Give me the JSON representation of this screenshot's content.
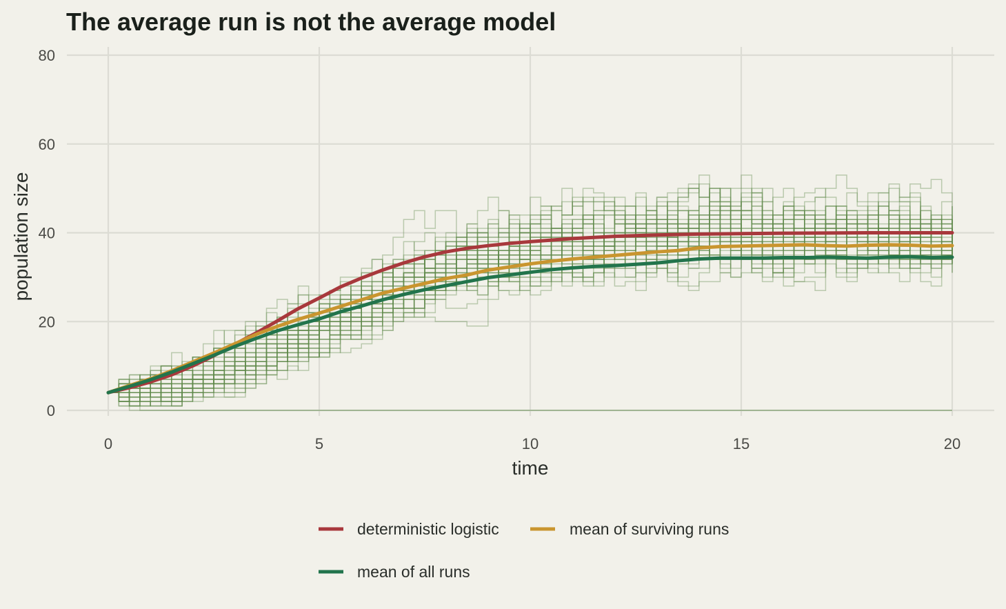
{
  "chart_data": {
    "type": "line",
    "title": "The average run is not the average model",
    "xlabel": "time",
    "ylabel": "population size",
    "xlim": [
      0,
      20
    ],
    "ylim": [
      0,
      80
    ],
    "x_ticks": [
      0,
      5,
      10,
      15,
      20
    ],
    "y_ticks": [
      0,
      20,
      40,
      60,
      80
    ],
    "grid": true,
    "legend_position": "bottom",
    "colors": {
      "deterministic": "#a8383c",
      "surviving": "#c9952f",
      "all_runs": "#22744c",
      "runs": "#5f8a4a",
      "background": "#f2f1ea",
      "grid": "#dcdcd4"
    },
    "series": [
      {
        "name": "deterministic logistic",
        "color": "#a8383c",
        "x": [
          0,
          0.5,
          1,
          1.5,
          2,
          2.5,
          3,
          3.5,
          4,
          4.5,
          5,
          5.5,
          6,
          6.5,
          7,
          7.5,
          8,
          8.5,
          9,
          9.5,
          10,
          11,
          12,
          13,
          14,
          15,
          16,
          17,
          18,
          19,
          20
        ],
        "values": [
          4,
          5.1,
          6.4,
          8,
          10,
          12.3,
          14.9,
          17.4,
          20.1,
          22.9,
          25.3,
          27.8,
          29.8,
          31.6,
          33.2,
          34.6,
          35.7,
          36.5,
          37.1,
          37.6,
          38.0,
          38.7,
          39.2,
          39.5,
          39.7,
          39.8,
          39.9,
          39.95,
          40,
          40,
          40
        ]
      },
      {
        "name": "mean of surviving runs",
        "color": "#c9952f",
        "x": [
          0,
          0.5,
          1,
          1.5,
          2,
          2.5,
          3,
          3.5,
          4,
          4.5,
          5,
          5.5,
          6,
          6.5,
          7,
          7.5,
          8,
          8.5,
          9,
          9.5,
          10,
          10.5,
          11,
          11.5,
          12,
          12.5,
          13,
          13.5,
          14,
          14.5,
          15,
          15.5,
          16,
          16.5,
          17,
          17.5,
          18,
          18.5,
          19,
          19.5,
          20
        ],
        "values": [
          4,
          5.6,
          7.1,
          8.9,
          10.9,
          12.9,
          15,
          17.1,
          18.9,
          20.5,
          21.9,
          23.4,
          24.9,
          26.4,
          27.5,
          28.6,
          29.7,
          30.5,
          31.6,
          32.3,
          33,
          33.6,
          34.1,
          34.5,
          34.9,
          35.3,
          35.7,
          36,
          36.6,
          36.9,
          37,
          37.1,
          37.2,
          37.3,
          37.1,
          37.0,
          37.2,
          37.3,
          37.2,
          37.0,
          37.1
        ]
      },
      {
        "name": "mean of all runs",
        "color": "#22744c",
        "x": [
          0,
          0.5,
          1,
          1.5,
          2,
          2.5,
          3,
          3.5,
          4,
          4.5,
          5,
          5.5,
          6,
          6.5,
          7,
          7.5,
          8,
          8.5,
          9,
          9.5,
          10,
          10.5,
          11,
          11.5,
          12,
          12.5,
          13,
          13.5,
          14,
          14.5,
          15,
          15.5,
          16,
          16.5,
          17,
          17.5,
          18,
          18.5,
          19,
          19.5,
          20
        ],
        "values": [
          4,
          5.4,
          6.9,
          8.6,
          10.5,
          12.4,
          14.4,
          16.2,
          17.9,
          19.3,
          20.6,
          22.2,
          23.5,
          24.9,
          26.1,
          27.2,
          28.1,
          29,
          29.9,
          30.5,
          31.1,
          31.7,
          32.1,
          32.4,
          32.6,
          32.9,
          33.2,
          33.7,
          34.1,
          34.3,
          34.3,
          34.3,
          34.4,
          34.4,
          34.5,
          34.4,
          34.3,
          34.5,
          34.6,
          34.4,
          34.5
        ]
      }
    ]
  }
}
